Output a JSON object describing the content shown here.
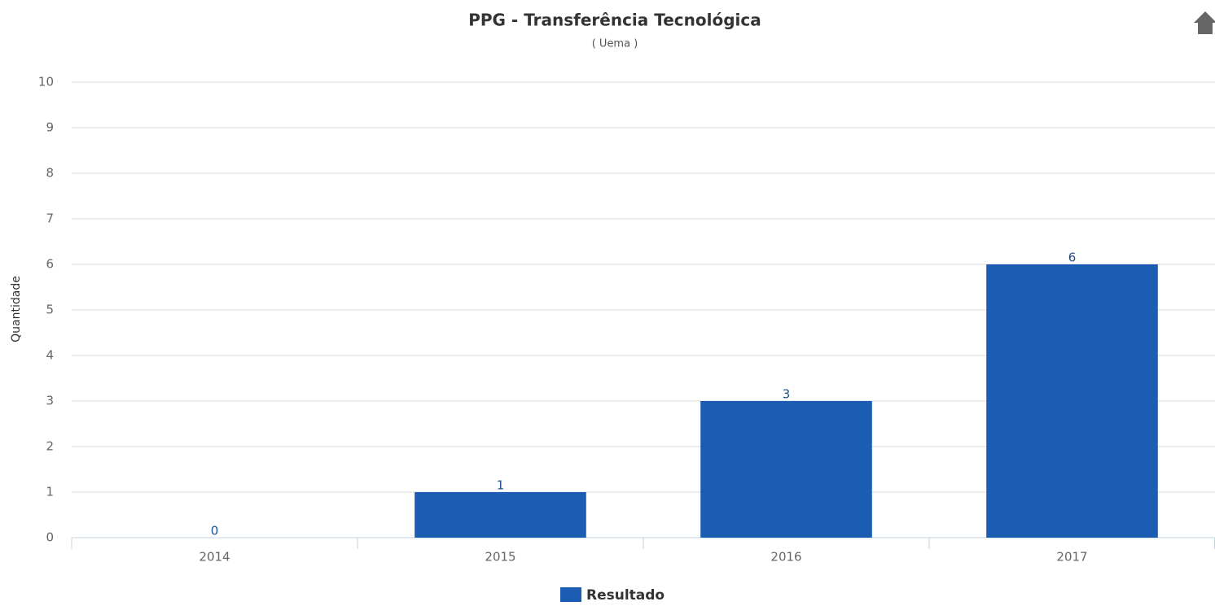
{
  "chart_data": {
    "type": "bar",
    "title": "PPG - Transferência Tecnológica",
    "subtitle": "( Uema )",
    "y_label": "Quantidade",
    "categories": [
      "2014",
      "2015",
      "2016",
      "2017"
    ],
    "series": [
      {
        "name": "Resultado",
        "color": "#1a5db3",
        "values": [
          0,
          1,
          3,
          6
        ]
      }
    ],
    "ylim": [
      0,
      10
    ],
    "yticks": [
      0,
      1,
      2,
      3,
      4,
      5,
      6,
      7,
      8,
      9,
      10
    ],
    "grid": true,
    "legend": "bottom"
  }
}
